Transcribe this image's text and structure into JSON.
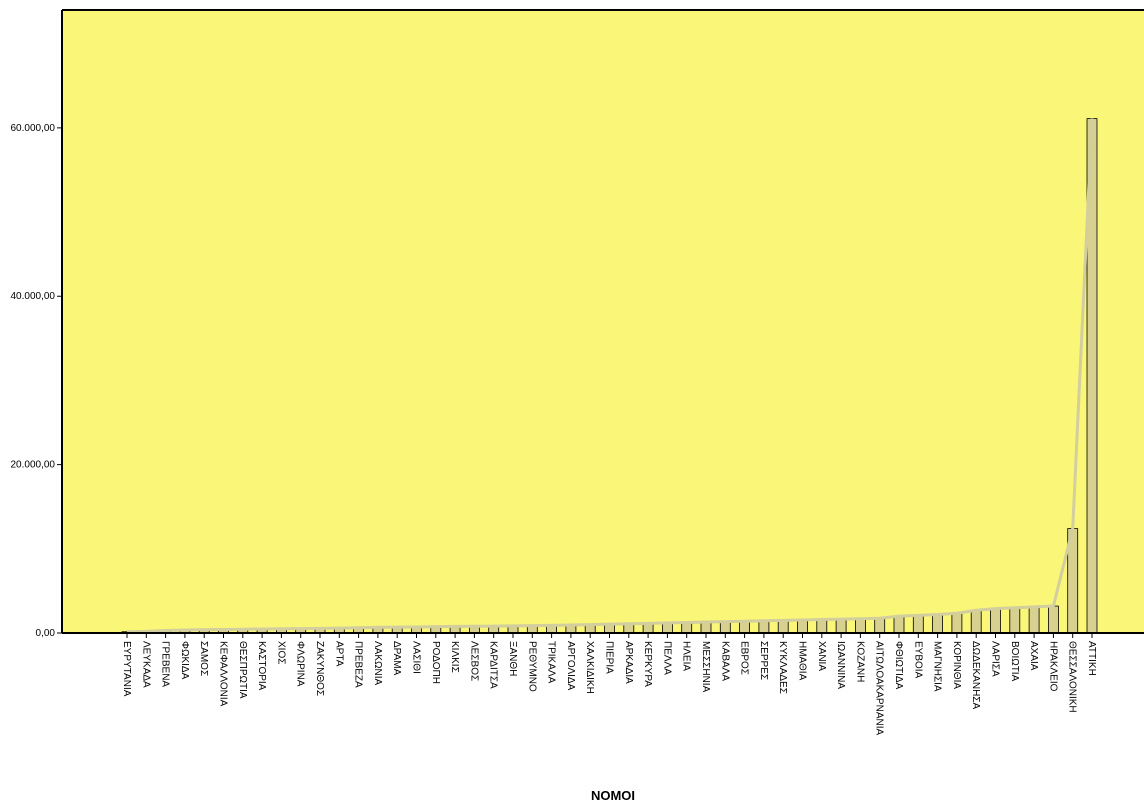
{
  "chart_data": {
    "type": "bar",
    "title": "",
    "xlabel": "ΝΟΜΟΙ",
    "ylabel": "",
    "ylim": [
      0,
      74000
    ],
    "yticks": [
      0,
      20000,
      40000,
      60000
    ],
    "ytick_labels": [
      "0,00",
      "20.000,00",
      "40.000,00",
      "60.000,00"
    ],
    "grid": false,
    "background_color": "#faf678",
    "bar_color": "#d8d08e",
    "line_color": "#d2ce9e",
    "categories": [
      "ΕΥΡΥΤΑΝΙΑ",
      "ΛΕΥΚΑΔΑ",
      "ΓΡΕΒΕΝΑ",
      "ΦΩΚΙΔΑ",
      "ΣΑΜΟΣ",
      "ΚΕΦΑΛΛΟΝΙΑ",
      "ΘΕΣΠΡΩΤΙΑ",
      "ΚΑΣΤΟΡΙΑ",
      "ΧΙΟΣ",
      "ΦΛΩΡΙΝΑ",
      "ΖΑΚΥΝΘΟΣ",
      "ΑΡΤΑ",
      "ΠΡΕΒΕΖΑ",
      "ΛΑΚΩΝΙΑ",
      "ΔΡΑΜΑ",
      "ΛΑΣΙΘΙ",
      "ΡΟΔΟΠΗ",
      "ΚΙΛΚΙΣ",
      "ΛΕΣΒΟΣ",
      "ΚΑΡΔΙΤΣΑ",
      "ΞΑΝΘΗ",
      "ΡΕΘΥΜΝΟ",
      "ΤΡΙΚΑΛΑ",
      "ΑΡΓΟΛΙΔΑ",
      "ΧΑΛΚΙΔΙΚΗ",
      "ΠΙΕΡΙΑ",
      "ΑΡΚΑΔΙΑ",
      "ΚΕΡΚΥΡΑ",
      "ΠΕΛΛΑ",
      "ΗΛΕΙΑ",
      "ΜΕΣΣΗΝΙΑ",
      "ΚΑΒΑΛΑ",
      "ΕΒΡΟΣ",
      "ΣΕΡΡΕΣ",
      "ΚΥΚΛΑΔΕΣ",
      "ΗΜΑΘΙΑ",
      "ΧΑΝΙΑ",
      "ΙΩΑΝΝΙΝΑ",
      "ΚΟΖΑΝΗ",
      "ΑΙΤΩΛΟΑΚΑΡΝΑΝΙΑ",
      "ΦΘΙΩΤΙΔΑ",
      "ΕΥΒΟΙΑ",
      "ΜΑΓΝΗΣΙΑ",
      "ΚΟΡΙΝΘΙΑ",
      "ΔΩΔΕΚΑΝΗΣΑ",
      "ΛΑΡΙΣΑ",
      "ΒΟΙΩΤΙΑ",
      "ΑΧΑΙΑ",
      "ΗΡΑΚΛΕΙΟ",
      "ΘΕΣΣΑΛΟΝΙΚΗ",
      "ΑΤΤΙΚΗ"
    ],
    "values": [
      150,
      200,
      300,
      350,
      400,
      420,
      450,
      480,
      500,
      520,
      550,
      580,
      620,
      680,
      700,
      720,
      750,
      780,
      800,
      820,
      850,
      880,
      900,
      950,
      1000,
      1050,
      1100,
      1150,
      1200,
      1250,
      1300,
      1350,
      1400,
      1450,
      1500,
      1550,
      1600,
      1650,
      1700,
      1750,
      2000,
      2100,
      2200,
      2350,
      2700,
      2900,
      3000,
      3100,
      3200,
      12400,
      61100
    ]
  }
}
